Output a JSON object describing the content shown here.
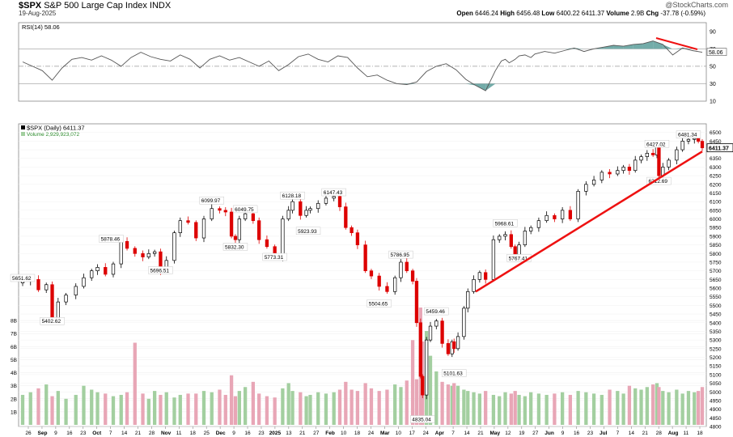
{
  "header": {
    "symbol": "$SPX",
    "name": "S&P 500 Large Cap Index",
    "exchange": "INDX",
    "date": "19-Aug-2025",
    "brand": "@StockCharts.com",
    "quote": {
      "open_label": "Open",
      "open": "6446.24",
      "high_label": "High",
      "high": "6456.48",
      "low_label": "Low",
      "low": "6400.22",
      "last": "6411.37",
      "volume_label": "Volume",
      "volume": "2.9B",
      "chg_label": "Chg",
      "chg": "-37.78 (-0.59%)"
    }
  },
  "colors": {
    "up": "#000000",
    "down": "#dd0000",
    "rsi_line": "#555555",
    "rsi_fill": "#5a9e9a",
    "vol_up": "#a3cfa0",
    "vol_down": "#e8a6b6",
    "trendline": "#ee1111"
  },
  "chart_data": [
    {
      "type": "line",
      "panel": "rsi",
      "label": "RSI(14) 58.06",
      "last_value": "58.06",
      "reference_lines": [
        30,
        50,
        70
      ],
      "y_ticks": [
        "10",
        "30",
        "50",
        "70",
        "90"
      ],
      "ylim": [
        10,
        100
      ],
      "series": [
        {
          "x": [
            0,
            5,
            10,
            15,
            20,
            25,
            30,
            35,
            40,
            45,
            50,
            55,
            60,
            65,
            70,
            75,
            80,
            85,
            90,
            95,
            100,
            105,
            110,
            115,
            120,
            125,
            130,
            135,
            140,
            145,
            150,
            155,
            160,
            165,
            170,
            175,
            180,
            185,
            190,
            195,
            200,
            205,
            210,
            215,
            220,
            225,
            230,
            235,
            240,
            243,
            245,
            247,
            250,
            252,
            255,
            258,
            260,
            265,
            270,
            275,
            280,
            285,
            290,
            295,
            300,
            305,
            310,
            315,
            320,
            325,
            330,
            335,
            340,
            345
          ],
          "values": [
            55,
            50,
            45,
            34,
            48,
            58,
            60,
            57,
            62,
            57,
            50,
            60,
            66,
            61,
            58,
            56,
            63,
            58,
            48,
            58,
            62,
            57,
            60,
            55,
            50,
            56,
            45,
            52,
            61,
            64,
            58,
            55,
            62,
            60,
            48,
            38,
            40,
            34,
            30,
            29,
            32,
            44,
            50,
            53,
            46,
            35,
            28,
            22,
            45,
            56,
            58,
            54,
            58,
            62,
            63,
            60,
            64,
            67,
            65,
            68,
            71,
            67,
            70,
            72,
            74,
            73,
            75,
            76,
            79,
            75,
            63,
            71,
            68,
            66
          ]
        }
      ]
    },
    {
      "type": "candlestick",
      "panel": "price",
      "title": "$SPX (Daily) 6411.37",
      "volume_label": "Volume 2,929,923,072",
      "ylim": [
        4800,
        6550
      ],
      "y_ticks": [
        "4800",
        "4850",
        "4900",
        "4950",
        "5000",
        "5050",
        "5100",
        "5150",
        "5200",
        "5250",
        "5300",
        "5350",
        "5400",
        "5450",
        "5500",
        "5550",
        "5600",
        "5650",
        "5700",
        "5750",
        "5800",
        "5850",
        "5900",
        "5950",
        "6000",
        "6050",
        "6100",
        "6150",
        "6200",
        "6250",
        "6300",
        "6350",
        "6400",
        "6450",
        "6500"
      ],
      "last_price": "6411.37",
      "x_tick_labels": [
        "26",
        "Sep",
        "9",
        "16",
        "23",
        "Oct",
        "7",
        "14",
        "21",
        "28",
        "Nov",
        "11",
        "18",
        "25",
        "Dec",
        "9",
        "16",
        "23",
        "2025",
        "13",
        "21",
        "27",
        "Feb",
        "10",
        "18",
        "24",
        "Mar",
        "10",
        "17",
        "24",
        "Apr",
        "7",
        "14",
        "21",
        "May",
        "12",
        "19",
        "27",
        "Jun",
        "9",
        "16",
        "23",
        "Jul",
        "7",
        "14",
        "21",
        "28",
        "Aug",
        "11",
        "18"
      ],
      "annotations": [
        {
          "text": "5651.62",
          "x": 0,
          "y": 5651.62
        },
        {
          "text": "5402.62",
          "x": 15,
          "y": 5402.62
        },
        {
          "text": "5878.46",
          "x": 45,
          "y": 5878.46
        },
        {
          "text": "5696.51",
          "x": 70,
          "y": 5696.51
        },
        {
          "text": "6099.97",
          "x": 96,
          "y": 6099.97
        },
        {
          "text": "5832.30",
          "x": 108,
          "y": 5832.3
        },
        {
          "text": "6049.75",
          "x": 113,
          "y": 6049.75
        },
        {
          "text": "5773.31",
          "x": 128,
          "y": 5773.31
        },
        {
          "text": "6128.18",
          "x": 137,
          "y": 6128.18
        },
        {
          "text": "5923.93",
          "x": 145,
          "y": 5923.93
        },
        {
          "text": "6147.43",
          "x": 158,
          "y": 6147.43
        },
        {
          "text": "5504.65",
          "x": 181,
          "y": 5504.65
        },
        {
          "text": "5786.95",
          "x": 192,
          "y": 5786.95
        },
        {
          "text": "4835.04",
          "x": 203,
          "y": 4835.04
        },
        {
          "text": "5459.46",
          "x": 210,
          "y": 5459.46
        },
        {
          "text": "5101.63",
          "x": 219,
          "y": 5101.63
        },
        {
          "text": "5968.61",
          "x": 245,
          "y": 5968.61
        },
        {
          "text": "5767.41",
          "x": 252,
          "y": 5767.41
        },
        {
          "text": "6427.02",
          "x": 322,
          "y": 6427.02
        },
        {
          "text": "6212.69",
          "x": 323,
          "y": 6212.69
        },
        {
          "text": "6481.34",
          "x": 338,
          "y": 6481.34
        }
      ],
      "trendlines": [
        {
          "from": {
            "x": 230,
            "y": 5580
          },
          "to": {
            "x": 345,
            "y": 6390
          }
        }
      ],
      "series": [
        {
          "x": [
            0,
            4,
            8,
            12,
            15,
            18,
            22,
            27,
            31,
            35,
            38,
            42,
            46,
            50,
            53,
            57,
            61,
            64,
            67,
            70,
            73,
            77,
            80,
            84,
            88,
            92,
            96,
            100,
            103,
            106,
            108,
            110,
            113,
            117,
            120,
            124,
            128,
            132,
            135,
            137,
            141,
            144,
            146,
            150,
            154,
            158,
            161,
            164,
            167,
            170,
            174,
            177,
            181,
            185,
            189,
            192,
            195,
            198,
            200,
            202,
            203,
            205,
            207,
            210,
            213,
            216,
            218,
            219,
            221,
            224,
            226,
            229,
            232,
            235,
            239,
            242,
            245,
            248,
            250,
            252,
            255,
            258,
            262,
            266,
            270,
            274,
            278,
            282,
            286,
            290,
            294,
            298,
            302,
            305,
            308,
            311,
            314,
            317,
            320,
            322,
            323,
            325,
            328,
            332,
            335,
            338,
            341,
            343,
            345
          ],
          "close": [
            5640,
            5650,
            5590,
            5620,
            5420,
            5520,
            5560,
            5610,
            5660,
            5700,
            5720,
            5680,
            5740,
            5870,
            5830,
            5800,
            5780,
            5800,
            5810,
            5700,
            5760,
            5920,
            5990,
            5980,
            5890,
            6000,
            6060,
            6050,
            6040,
            5900,
            5880,
            6000,
            6030,
            5990,
            5880,
            5840,
            5780,
            6000,
            6050,
            6100,
            6020,
            6050,
            6060,
            6090,
            6120,
            6130,
            6070,
            5950,
            5920,
            5850,
            5700,
            5670,
            5610,
            5580,
            5660,
            5750,
            5700,
            5640,
            5400,
            5090,
            4982,
            5300,
            5380,
            5410,
            5280,
            5220,
            5290,
            5250,
            5320,
            5484,
            5580,
            5650,
            5690,
            5650,
            5880,
            5900,
            5910,
            5840,
            5780,
            5850,
            5930,
            5950,
            5990,
            6020,
            6000,
            6050,
            6000,
            6160,
            6200,
            6225,
            6270,
            6260,
            6280,
            6300,
            6280,
            6340,
            6360,
            6380,
            6370,
            6420,
            6250,
            6300,
            6340,
            6400,
            6450,
            6460,
            6466,
            6449,
            6411
          ],
          "volume": [
            2.3,
            2.5,
            2.8,
            3.1,
            2.2,
            2.6,
            2.0,
            2.3,
            3.0,
            2.7,
            2.5,
            2.4,
            2.2,
            2.3,
            2.5,
            6.3,
            2.4,
            2.0,
            2.6,
            2.3,
            2.5,
            2.1,
            2.3,
            2.4,
            2.4,
            2.6,
            2.5,
            2.7,
            2.3,
            3.8,
            2.2,
            2.6,
            2.9,
            3.3,
            2.4,
            2.2,
            2.1,
            2.8,
            3.2,
            2.6,
            2.5,
            2.2,
            2.3,
            2.5,
            2.4,
            2.5,
            2.7,
            3.3,
            2.7,
            2.6,
            3.2,
            2.8,
            2.6,
            2.7,
            3.1,
            2.9,
            3.4,
            6.5,
            3.5,
            9.0,
            6.4,
            7.2,
            5.3,
            4.1,
            3.3,
            3.1,
            3.0,
            3.2,
            3.0,
            2.7,
            2.6,
            2.5,
            2.4,
            2.6,
            2.3,
            2.2,
            2.5,
            2.4,
            2.6,
            2.3,
            2.2,
            2.5,
            2.4,
            2.3,
            2.4,
            2.5,
            2.3,
            2.6,
            2.5,
            2.4,
            2.3,
            2.7,
            2.6,
            2.4,
            3.0,
            2.8,
            2.7,
            2.9,
            3.1,
            3.2,
            2.9,
            2.6,
            2.5,
            2.7,
            2.4,
            2.6,
            2.5,
            2.6,
            2.9
          ],
          "volume_ylim": [
            0,
            9
          ],
          "volume_ticks": [
            "1B",
            "2B",
            "3B",
            "4B",
            "5B",
            "6B",
            "7B",
            "8B"
          ],
          "volume_last": "2929923072"
        }
      ]
    }
  ]
}
